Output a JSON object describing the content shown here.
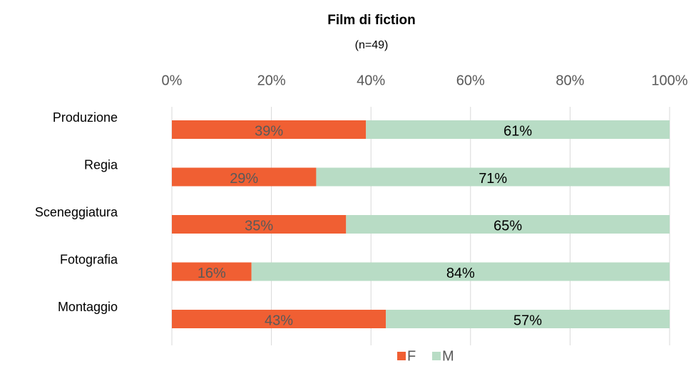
{
  "chart_data": {
    "type": "stacked_barh",
    "title": "Film di fiction",
    "subtitle": "(n=49)",
    "categories": [
      "Produzione",
      "Regia",
      "Sceneggiatura",
      "Fotografia",
      "Montaggio"
    ],
    "series": [
      {
        "name": "F",
        "color": "#f05f33",
        "label_color": "#595959",
        "values": [
          39,
          29,
          35,
          16,
          43
        ],
        "value_labels": [
          "39%",
          "29%",
          "35%",
          "16%",
          "43%"
        ]
      },
      {
        "name": "M",
        "color": "#b8dcc5",
        "label_color": "#000000",
        "values": [
          61,
          71,
          65,
          84,
          57
        ],
        "value_labels": [
          "61%",
          "71%",
          "65%",
          "84%",
          "57%"
        ]
      }
    ],
    "xlim": [
      0,
      100
    ],
    "xticks": [
      {
        "value": 0,
        "label": "0%"
      },
      {
        "value": 20,
        "label": "20%"
      },
      {
        "value": 40,
        "label": "40%"
      },
      {
        "value": 60,
        "label": "60%"
      },
      {
        "value": 80,
        "label": "80%"
      },
      {
        "value": 100,
        "label": "100%"
      }
    ],
    "grid": true,
    "legend": "bottom"
  }
}
